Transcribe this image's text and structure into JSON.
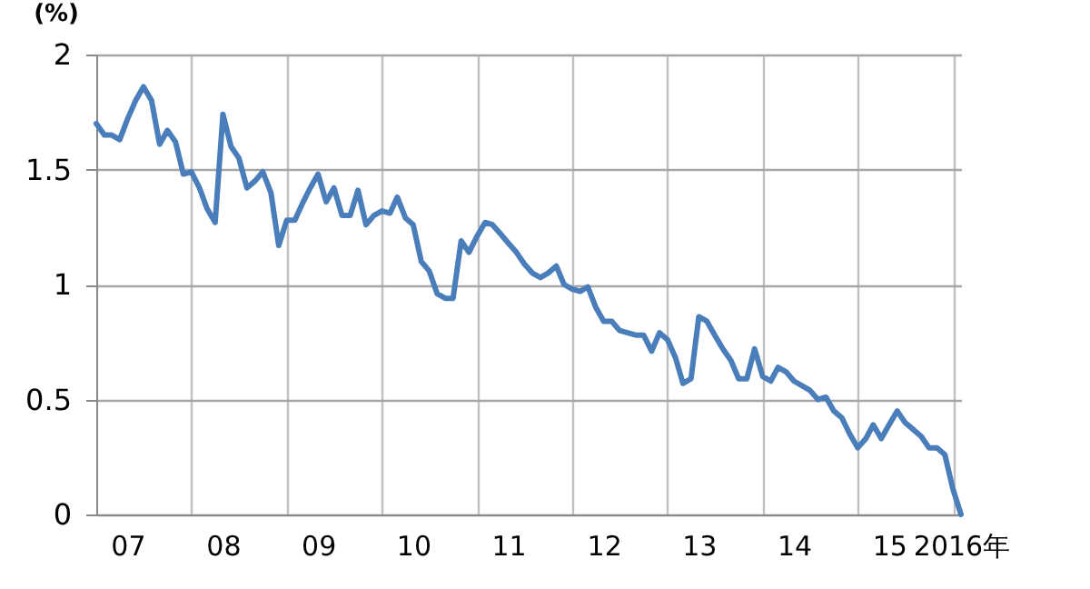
{
  "chart_data": {
    "type": "line",
    "ylabel": "(%)",
    "x": [
      "2007-01",
      "2007-02",
      "2007-03",
      "2007-04",
      "2007-05",
      "2007-06",
      "2007-07",
      "2007-08",
      "2007-09",
      "2007-10",
      "2007-11",
      "2007-12",
      "2008-01",
      "2008-02",
      "2008-03",
      "2008-04",
      "2008-05",
      "2008-06",
      "2008-07",
      "2008-08",
      "2008-09",
      "2008-10",
      "2008-11",
      "2008-12",
      "2009-01",
      "2009-02",
      "2009-03",
      "2009-04",
      "2009-05",
      "2009-06",
      "2009-07",
      "2009-08",
      "2009-09",
      "2009-10",
      "2009-11",
      "2009-12",
      "2010-01",
      "2010-02",
      "2010-03",
      "2010-04",
      "2010-05",
      "2010-06",
      "2010-07",
      "2010-08",
      "2010-09",
      "2010-10",
      "2010-11",
      "2010-12",
      "2011-01",
      "2011-02",
      "2011-03",
      "2011-04",
      "2011-05",
      "2011-06",
      "2011-07",
      "2011-08",
      "2011-09",
      "2011-10",
      "2011-11",
      "2011-12",
      "2012-01",
      "2012-02",
      "2012-03",
      "2012-04",
      "2012-05",
      "2012-06",
      "2012-07",
      "2012-08",
      "2012-09",
      "2012-10",
      "2012-11",
      "2012-12",
      "2013-01",
      "2013-02",
      "2013-03",
      "2013-04",
      "2013-05",
      "2013-06",
      "2013-07",
      "2013-08",
      "2013-09",
      "2013-10",
      "2013-11",
      "2013-12",
      "2014-01",
      "2014-02",
      "2014-03",
      "2014-04",
      "2014-05",
      "2014-06",
      "2014-07",
      "2014-08",
      "2014-09",
      "2014-10",
      "2014-11",
      "2014-12",
      "2015-01",
      "2015-02",
      "2015-03",
      "2015-04",
      "2015-05",
      "2015-06",
      "2015-07",
      "2015-08",
      "2015-09",
      "2015-10",
      "2015-11",
      "2015-12",
      "2016-01",
      "2016-02"
    ],
    "series": [
      {
        "color": "#4a7ebb",
        "values": [
          1.7,
          1.65,
          1.65,
          1.63,
          1.72,
          1.8,
          1.86,
          1.8,
          1.61,
          1.67,
          1.62,
          1.48,
          1.49,
          1.42,
          1.33,
          1.27,
          1.74,
          1.6,
          1.55,
          1.42,
          1.45,
          1.49,
          1.4,
          1.17,
          1.28,
          1.28,
          1.35,
          1.42,
          1.48,
          1.36,
          1.42,
          1.3,
          1.3,
          1.41,
          1.26,
          1.3,
          1.32,
          1.31,
          1.38,
          1.29,
          1.26,
          1.1,
          1.06,
          0.96,
          0.94,
          0.94,
          1.19,
          1.14,
          1.21,
          1.27,
          1.26,
          1.22,
          1.18,
          1.14,
          1.09,
          1.05,
          1.03,
          1.05,
          1.08,
          1.0,
          0.98,
          0.97,
          0.99,
          0.9,
          0.84,
          0.84,
          0.8,
          0.79,
          0.78,
          0.78,
          0.71,
          0.79,
          0.76,
          0.68,
          0.57,
          0.59,
          0.86,
          0.84,
          0.78,
          0.72,
          0.67,
          0.59,
          0.59,
          0.72,
          0.6,
          0.58,
          0.64,
          0.62,
          0.58,
          0.56,
          0.54,
          0.5,
          0.51,
          0.45,
          0.42,
          0.35,
          0.29,
          0.33,
          0.39,
          0.33,
          0.39,
          0.45,
          0.4,
          0.37,
          0.34,
          0.29,
          0.29,
          0.26,
          0.11,
          0.0
        ]
      }
    ],
    "xlim": [
      "2007-01",
      "2016-02"
    ],
    "ylim": [
      0,
      2
    ],
    "yticks": [
      0,
      0.5,
      1,
      1.5,
      2
    ],
    "xticks": [
      {
        "value": "2007-05",
        "label": "07"
      },
      {
        "value": "2008-01",
        "label": null
      },
      {
        "value": "2008-05",
        "label": "08"
      },
      {
        "value": "2009-01",
        "label": null
      },
      {
        "value": "2009-05",
        "label": "09"
      },
      {
        "value": "2010-01",
        "label": null
      },
      {
        "value": "2010-05",
        "label": "10"
      },
      {
        "value": "2011-01",
        "label": null
      },
      {
        "value": "2011-05",
        "label": "11"
      },
      {
        "value": "2012-01",
        "label": null
      },
      {
        "value": "2012-05",
        "label": "12"
      },
      {
        "value": "2013-01",
        "label": null
      },
      {
        "value": "2013-05",
        "label": "13"
      },
      {
        "value": "2014-01",
        "label": null
      },
      {
        "value": "2014-05",
        "label": "14"
      },
      {
        "value": "2015-01",
        "label": null
      },
      {
        "value": "2015-05",
        "label": "15"
      },
      {
        "value": "2016-01",
        "label": null
      },
      {
        "value": "2016-02",
        "label": "2016年"
      }
    ],
    "grid": true
  }
}
